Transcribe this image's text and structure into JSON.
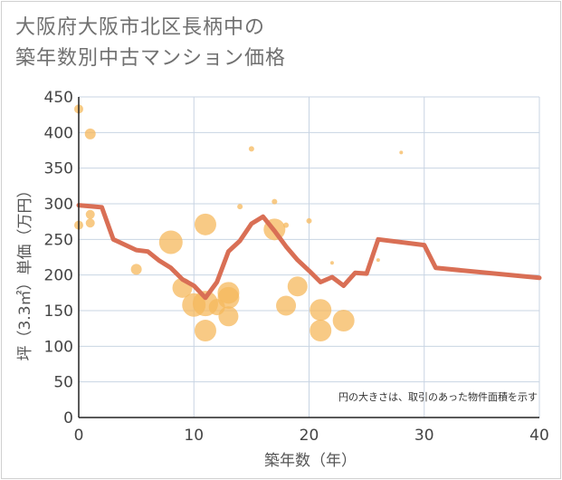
{
  "title_line1": "大阪府大阪市北区長柄中の",
  "title_line2": "築年数別中古マンション価格",
  "chart_data": {
    "type": "scatter",
    "title": "大阪府大阪市北区長柄中の築年数別中古マンション価格",
    "xlabel": "築年数（年）",
    "ylabel": "坪（3.3㎡）単価（万円）",
    "xlim": [
      0,
      40
    ],
    "ylim": [
      0,
      450
    ],
    "x_ticks": [
      0,
      10,
      20,
      30,
      40
    ],
    "y_ticks": [
      0,
      50,
      100,
      150,
      200,
      250,
      300,
      350,
      400,
      450
    ],
    "grid": true,
    "note": "円の大きさは、取引のあった物件面積を示す",
    "colors": {
      "bubble": "#f5b85c",
      "line": "#d96f55",
      "grid": "#c8d4e3"
    },
    "bubbles": [
      {
        "x": 0,
        "y": 433,
        "s": 5
      },
      {
        "x": 0,
        "y": 270,
        "s": 5
      },
      {
        "x": 1,
        "y": 398,
        "s": 6
      },
      {
        "x": 1,
        "y": 285,
        "s": 5
      },
      {
        "x": 1,
        "y": 273,
        "s": 5
      },
      {
        "x": 5,
        "y": 208,
        "s": 6
      },
      {
        "x": 8,
        "y": 246,
        "s": 13
      },
      {
        "x": 9,
        "y": 182,
        "s": 11
      },
      {
        "x": 10,
        "y": 158,
        "s": 13
      },
      {
        "x": 11,
        "y": 271,
        "s": 12
      },
      {
        "x": 11,
        "y": 160,
        "s": 14
      },
      {
        "x": 11,
        "y": 122,
        "s": 12
      },
      {
        "x": 12,
        "y": 155,
        "s": 9
      },
      {
        "x": 13,
        "y": 175,
        "s": 12
      },
      {
        "x": 13,
        "y": 168,
        "s": 12
      },
      {
        "x": 13,
        "y": 142,
        "s": 11
      },
      {
        "x": 14,
        "y": 296,
        "s": 3
      },
      {
        "x": 15,
        "y": 377,
        "s": 3
      },
      {
        "x": 17,
        "y": 303,
        "s": 3
      },
      {
        "x": 17,
        "y": 264,
        "s": 12
      },
      {
        "x": 18,
        "y": 270,
        "s": 3
      },
      {
        "x": 18,
        "y": 157,
        "s": 11
      },
      {
        "x": 19,
        "y": 184,
        "s": 11
      },
      {
        "x": 20,
        "y": 276,
        "s": 3
      },
      {
        "x": 21,
        "y": 151,
        "s": 12
      },
      {
        "x": 21,
        "y": 122,
        "s": 12
      },
      {
        "x": 22,
        "y": 217,
        "s": 2
      },
      {
        "x": 23,
        "y": 136,
        "s": 12
      },
      {
        "x": 26,
        "y": 221,
        "s": 2
      },
      {
        "x": 28,
        "y": 372,
        "s": 2
      }
    ],
    "trend_line": {
      "x": [
        0,
        2,
        3,
        5,
        6,
        7,
        8,
        9,
        10,
        11,
        12,
        13,
        14,
        15,
        16,
        17,
        18,
        19,
        20,
        21,
        22,
        23,
        24,
        25,
        26,
        30,
        31,
        40
      ],
      "y": [
        298,
        295,
        250,
        235,
        233,
        220,
        210,
        194,
        185,
        168,
        190,
        233,
        248,
        272,
        282,
        262,
        240,
        221,
        206,
        190,
        197,
        185,
        203,
        202,
        250,
        242,
        210,
        196
      ]
    }
  }
}
